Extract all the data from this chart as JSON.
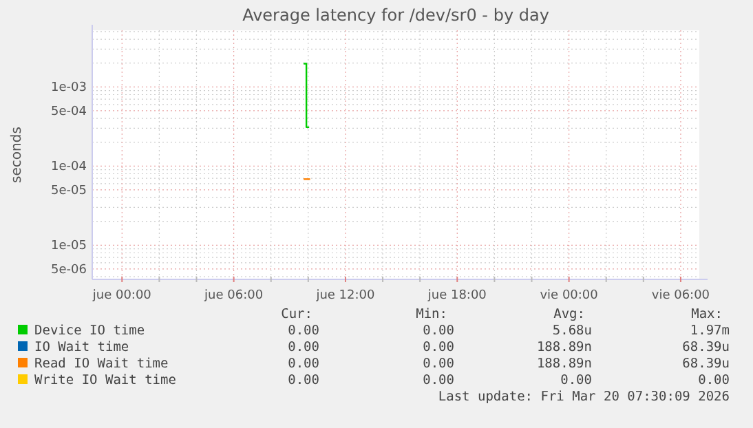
{
  "chart_data": {
    "type": "step",
    "title": "Average latency for /dev/sr0 - by day",
    "ylabel": "seconds",
    "log": true,
    "grid": true,
    "legend": "bottom",
    "xlim": [
      "2026-03-18T22:24",
      "2026-03-20T07:00"
    ],
    "ylim": [
      3.7e-06,
      0.0052
    ],
    "yticks": [
      {
        "value": 4e-06,
        "label": null
      },
      {
        "value": 5e-06,
        "label": "5e-06"
      },
      {
        "value": 6e-06,
        "label": null
      },
      {
        "value": 7e-06,
        "label": null
      },
      {
        "value": 8e-06,
        "label": null
      },
      {
        "value": 9e-06,
        "label": null
      },
      {
        "value": 1e-05,
        "label": "1e-05"
      },
      {
        "value": 2e-05,
        "label": null
      },
      {
        "value": 3e-05,
        "label": null
      },
      {
        "value": 4e-05,
        "label": null
      },
      {
        "value": 5e-05,
        "label": "5e-05"
      },
      {
        "value": 6e-05,
        "label": null
      },
      {
        "value": 7e-05,
        "label": null
      },
      {
        "value": 8e-05,
        "label": null
      },
      {
        "value": 9e-05,
        "label": null
      },
      {
        "value": 0.0001,
        "label": "1e-04"
      },
      {
        "value": 0.0002,
        "label": null
      },
      {
        "value": 0.0003,
        "label": null
      },
      {
        "value": 0.0004,
        "label": null
      },
      {
        "value": 0.0005,
        "label": "5e-04"
      },
      {
        "value": 0.0006,
        "label": null
      },
      {
        "value": 0.0007,
        "label": null
      },
      {
        "value": 0.0008,
        "label": null
      },
      {
        "value": 0.0009,
        "label": null
      },
      {
        "value": 0.001,
        "label": "1e-03"
      },
      {
        "value": 0.002,
        "label": null
      },
      {
        "value": 0.003,
        "label": null
      },
      {
        "value": 0.004,
        "label": null
      },
      {
        "value": 0.005,
        "label": null
      }
    ],
    "xticks": [
      {
        "value": "2026-03-19T00:00",
        "label": "jue 00:00"
      },
      {
        "value": "2026-03-19T02:00",
        "label": null
      },
      {
        "value": "2026-03-19T04:00",
        "label": null
      },
      {
        "value": "2026-03-19T06:00",
        "label": "jue 06:00"
      },
      {
        "value": "2026-03-19T08:00",
        "label": null
      },
      {
        "value": "2026-03-19T10:00",
        "label": null
      },
      {
        "value": "2026-03-19T12:00",
        "label": "jue 12:00"
      },
      {
        "value": "2026-03-19T14:00",
        "label": null
      },
      {
        "value": "2026-03-19T16:00",
        "label": null
      },
      {
        "value": "2026-03-19T18:00",
        "label": "jue 18:00"
      },
      {
        "value": "2026-03-19T20:00",
        "label": null
      },
      {
        "value": "2026-03-19T22:00",
        "label": null
      },
      {
        "value": "2026-03-20T00:00",
        "label": "vie 00:00"
      },
      {
        "value": "2026-03-20T02:00",
        "label": null
      },
      {
        "value": "2026-03-20T04:00",
        "label": null
      },
      {
        "value": "2026-03-20T06:00",
        "label": "vie 06:00"
      }
    ],
    "series": [
      {
        "name": "Device IO time",
        "color": "#00cc00",
        "x": [
          "2026-03-19T09:45",
          "2026-03-19T09:54",
          "2026-03-19T10:03"
        ],
        "values": [
          0.00197,
          0.00031,
          0.00031
        ]
      },
      {
        "name": "IO Wait time",
        "color": "#0066b3"
      },
      {
        "name": "Read IO Wait time",
        "color": "#ff8000",
        "x": [
          "2026-03-19T09:45",
          "2026-03-19T10:06"
        ],
        "values": [
          6.839e-05,
          6.839e-05
        ]
      },
      {
        "name": "Write IO Wait time",
        "color": "#ffcc00"
      }
    ],
    "annotations": [
      "Cur:",
      "Min:",
      "Avg:",
      "Max:",
      "0.00",
      "0.00",
      "5.68u",
      "1.97m",
      "0.00",
      "0.00",
      "188.89n",
      "68.39u",
      "0.00",
      "0.00",
      "188.89n",
      "68.39u",
      "0.00",
      "0.00",
      "0.00",
      "0.00",
      "Last update: Fri Mar 20 07:30:09 2026"
    ]
  }
}
